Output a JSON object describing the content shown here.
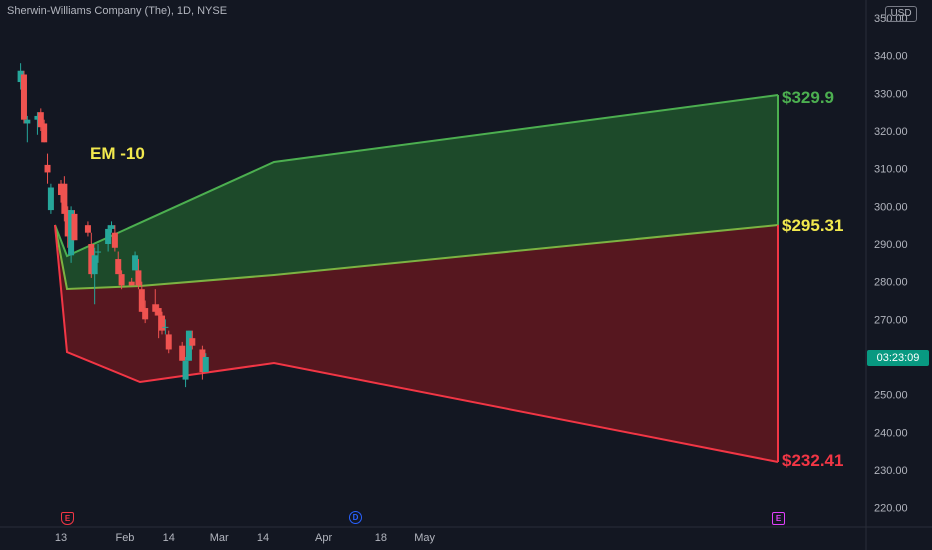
{
  "symbol_title": "Sherwin-Williams Company (The), 1D, NYSE",
  "currency": "USD",
  "annotation": "EM -10",
  "levels": {
    "upper": "$329.9",
    "mid": "$295.31",
    "lower": "$232.41"
  },
  "countdown": "03:23:09",
  "events": {
    "earnings_1": "E",
    "dividend": "D",
    "earnings_2": "E"
  },
  "colors": {
    "background": "#131722",
    "up_candle": "#26a69a",
    "down_candle": "#ef5350",
    "upper_band": "#4caf50",
    "lower_band": "#f23645",
    "annotation": "#f2e94e",
    "countdown_bg": "#089981"
  },
  "chart_data": {
    "type": "candlestick",
    "title": "Sherwin-Williams Company (The), 1D, NYSE",
    "y_axis": {
      "position": "right",
      "range": [
        215,
        355
      ],
      "ticks": [
        {
          "value": 220,
          "label": "220.00"
        },
        {
          "value": 230,
          "label": "230.00"
        },
        {
          "value": 240,
          "label": "240.00"
        },
        {
          "value": 250,
          "label": "250.00"
        },
        {
          "value": 260,
          "label": "260.00"
        },
        {
          "value": 270,
          "label": "270.00"
        },
        {
          "value": 280,
          "label": "280.00"
        },
        {
          "value": 290,
          "label": "290.00"
        },
        {
          "value": 300,
          "label": "300.00"
        },
        {
          "value": 310,
          "label": "310.00"
        },
        {
          "value": 320,
          "label": "320.00"
        },
        {
          "value": 330,
          "label": "330.00"
        },
        {
          "value": 340,
          "label": "340.00"
        },
        {
          "value": 350,
          "label": "350.00"
        }
      ]
    },
    "x_axis": {
      "ticks": [
        {
          "date": "2025-01-13",
          "label": "13"
        },
        {
          "date": "2025-02-01",
          "label": "Feb"
        },
        {
          "date": "2025-02-14",
          "label": "14"
        },
        {
          "date": "2025-03-01",
          "label": "Mar"
        },
        {
          "date": "2025-03-14",
          "label": "14"
        },
        {
          "date": "2025-04-01",
          "label": "Apr"
        },
        {
          "date": "2025-04-18",
          "label": "18"
        },
        {
          "date": "2025-05-01",
          "label": "May"
        }
      ]
    },
    "candles": [
      {
        "date": "2025-01-01",
        "open": 333,
        "high": 338,
        "low": 331,
        "close": 336
      },
      {
        "date": "2025-01-02",
        "open": 335,
        "high": 336,
        "low": 322,
        "close": 323
      },
      {
        "date": "2025-01-03",
        "open": 322,
        "high": 324,
        "low": 317,
        "close": 323
      },
      {
        "date": "2025-01-06",
        "open": 323,
        "high": 325,
        "low": 319,
        "close": 324
      },
      {
        "date": "2025-01-07",
        "open": 325,
        "high": 326,
        "low": 320,
        "close": 321
      },
      {
        "date": "2025-01-08",
        "open": 322,
        "high": 323,
        "low": 317,
        "close": 317
      },
      {
        "date": "2025-01-09",
        "open": 311,
        "high": 314,
        "low": 306,
        "close": 309
      },
      {
        "date": "2025-01-10",
        "open": 299,
        "high": 306,
        "low": 298,
        "close": 305
      },
      {
        "date": "2025-01-13",
        "open": 306,
        "high": 307,
        "low": 301,
        "close": 303
      },
      {
        "date": "2025-01-14",
        "open": 306,
        "high": 308,
        "low": 296,
        "close": 298
      },
      {
        "date": "2025-01-15",
        "open": 299,
        "high": 300,
        "low": 289,
        "close": 292
      },
      {
        "date": "2025-01-16",
        "open": 287,
        "high": 300,
        "low": 285,
        "close": 299
      },
      {
        "date": "2025-01-17",
        "open": 298,
        "high": 299,
        "low": 291,
        "close": 291
      },
      {
        "date": "2025-01-21",
        "open": 295,
        "high": 296,
        "low": 292,
        "close": 293
      },
      {
        "date": "2025-01-22",
        "open": 290,
        "high": 293,
        "low": 281,
        "close": 282
      },
      {
        "date": "2025-01-23",
        "open": 282,
        "high": 289,
        "low": 274,
        "close": 287
      },
      {
        "date": "2025-01-24",
        "open": 288,
        "high": 290,
        "low": 285,
        "close": 288
      },
      {
        "date": "2025-01-27",
        "open": 290,
        "high": 295,
        "low": 288,
        "close": 294
      },
      {
        "date": "2025-01-28",
        "open": 294,
        "high": 296,
        "low": 293,
        "close": 295
      },
      {
        "date": "2025-01-29",
        "open": 293,
        "high": 295,
        "low": 288,
        "close": 289
      },
      {
        "date": "2025-01-30",
        "open": 286,
        "high": 288,
        "low": 282,
        "close": 282
      },
      {
        "date": "2025-01-31",
        "open": 282,
        "high": 283,
        "low": 278,
        "close": 279
      },
      {
        "date": "2025-02-03",
        "open": 280,
        "high": 281,
        "low": 279,
        "close": 279
      },
      {
        "date": "2025-02-04",
        "open": 283,
        "high": 288,
        "low": 283,
        "close": 287
      },
      {
        "date": "2025-02-05",
        "open": 283,
        "high": 286,
        "low": 278,
        "close": 279
      },
      {
        "date": "2025-02-06",
        "open": 278,
        "high": 280,
        "low": 272,
        "close": 272
      },
      {
        "date": "2025-02-07",
        "open": 273,
        "high": 275,
        "low": 269,
        "close": 270
      },
      {
        "date": "2025-02-10",
        "open": 274,
        "high": 278,
        "low": 271,
        "close": 272
      },
      {
        "date": "2025-02-11",
        "open": 273,
        "high": 274,
        "low": 265,
        "close": 271
      },
      {
        "date": "2025-02-12",
        "open": 271,
        "high": 272,
        "low": 266,
        "close": 267
      },
      {
        "date": "2025-02-13",
        "open": 268,
        "high": 270,
        "low": 266,
        "close": 268
      },
      {
        "date": "2025-02-14",
        "open": 266,
        "high": 267,
        "low": 261,
        "close": 262
      },
      {
        "date": "2025-02-18",
        "open": 263,
        "high": 264,
        "low": 259,
        "close": 259
      },
      {
        "date": "2025-02-19",
        "open": 254,
        "high": 260,
        "low": 252,
        "close": 259
      },
      {
        "date": "2025-02-20",
        "open": 259,
        "high": 267,
        "low": 259,
        "close": 267
      },
      {
        "date": "2025-02-21",
        "open": 265,
        "high": 267,
        "low": 262,
        "close": 263
      },
      {
        "date": "2025-02-24",
        "open": 262,
        "high": 263,
        "low": 254,
        "close": 256
      },
      {
        "date": "2025-02-25",
        "open": 256,
        "high": 261,
        "low": 256,
        "close": 260
      }
    ],
    "expected_move_bands": {
      "annotation": "EM -10",
      "upper": {
        "final_label": "$329.9"
      },
      "mid": {
        "final_label": "$295.31"
      },
      "lower": {
        "final_label": "$232.41"
      }
    }
  }
}
